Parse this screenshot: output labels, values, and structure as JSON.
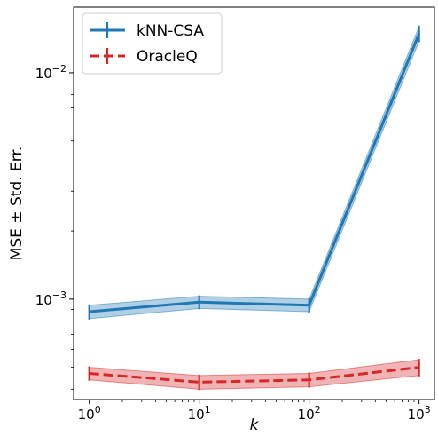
{
  "chart_data": {
    "type": "line",
    "xlabel": "k",
    "ylabel": "MSE ± Std. Err.",
    "xscale": "log",
    "yscale": "log",
    "xlim": [
      0.72,
      1380
    ],
    "ylim": [
      0.00036,
      0.0195
    ],
    "x": [
      1,
      10,
      100,
      1000
    ],
    "x_ticks": [
      {
        "value": 1,
        "base": "10",
        "exp": "0"
      },
      {
        "value": 10,
        "base": "10",
        "exp": "1"
      },
      {
        "value": 100,
        "base": "10",
        "exp": "2"
      },
      {
        "value": 1000,
        "base": "10",
        "exp": "3"
      }
    ],
    "y_ticks": [
      {
        "value": 0.001,
        "base": "10",
        "exp": "−3"
      },
      {
        "value": 0.01,
        "base": "10",
        "exp": "−2"
      }
    ],
    "grid": false,
    "legend_position": "top-left",
    "series": [
      {
        "name": "kNN-CSA",
        "color": "#1f77b4",
        "linestyle": "solid",
        "values": [
          0.00088,
          0.00097,
          0.00094,
          0.0149
        ],
        "err": [
          6e-05,
          6e-05,
          6e-05,
          0.0011
        ]
      },
      {
        "name": "OracleQ",
        "color": "#d62728",
        "linestyle": "dashed",
        "values": [
          0.00047,
          0.00043,
          0.00044,
          0.0005
        ],
        "err": [
          3e-05,
          3e-05,
          3e-05,
          4e-05
        ]
      }
    ]
  }
}
